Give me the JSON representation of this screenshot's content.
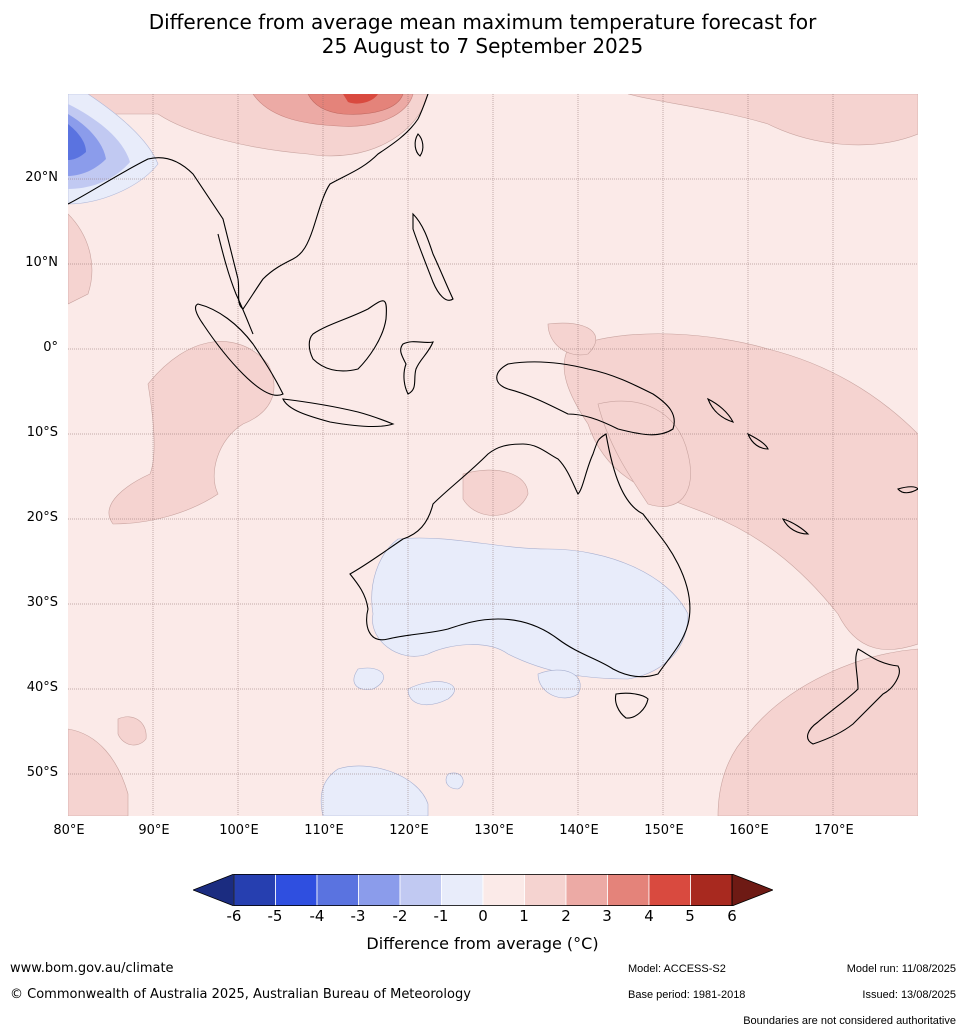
{
  "title_line1": "Difference from average mean maximum temperature forecast for",
  "title_line2": "25 August to 7 September 2025",
  "lat_labels": [
    "20°N",
    "10°N",
    "0°",
    "10°S",
    "20°S",
    "30°S",
    "40°S",
    "50°S"
  ],
  "lon_labels": [
    "80°E",
    "90°E",
    "100°E",
    "110°E",
    "120°E",
    "130°E",
    "140°E",
    "150°E",
    "160°E",
    "170°E"
  ],
  "colorbar": {
    "ticks": [
      "-6",
      "-5",
      "-4",
      "-3",
      "-2",
      "-1",
      "0",
      "1",
      "2",
      "3",
      "4",
      "5",
      "6"
    ],
    "colors": [
      "#1b2c80",
      "#263fb0",
      "#2f4fe0",
      "#5a73e0",
      "#8b9ceb",
      "#c1c9f2",
      "#e8ecfa",
      "#fbeae8",
      "#f5d3d0",
      "#ecaaa5",
      "#e4837a",
      "#d94a3f",
      "#a8291f",
      "#6e1a14"
    ],
    "label": "Difference from average (°C)"
  },
  "footer": {
    "website": "www.bom.gov.au/climate",
    "copyright": "© Commonwealth of Australia 2025, Australian Bureau of Meteorology",
    "model": "Model: ACCESS-S2",
    "base_period": "Base period: 1981-2018",
    "model_run": "Model run: 11/08/2025",
    "issued": "Issued: 13/08/2025",
    "disclaimer": "Boundaries are not considered authoritative"
  }
}
